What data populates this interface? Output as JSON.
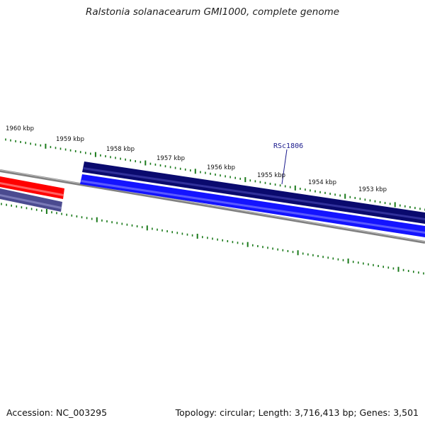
{
  "header": {
    "title": "Ralstonia solanacearum GMI1000, complete genome"
  },
  "footer": {
    "accession": "Accession: NC_003295",
    "topology": "Topology: circular; Length: 3,716,413 bp; Genes: 3,501"
  },
  "map": {
    "scale_labels": [
      "1960 kbp",
      "1959 kbp",
      "1958 kbp",
      "1957 kbp",
      "1956 kbp",
      "1955 kbp",
      "1954 kbp",
      "1953 kbp"
    ],
    "gene_label": "RSc1806",
    "colors": {
      "backbone": "#808080",
      "gene_dark": "#0a0a6e",
      "gene_blue": "#1414ff",
      "gene_red": "#ff0000",
      "gene_slate": "#4b4b90",
      "ticks": "#1a7a1a"
    }
  }
}
